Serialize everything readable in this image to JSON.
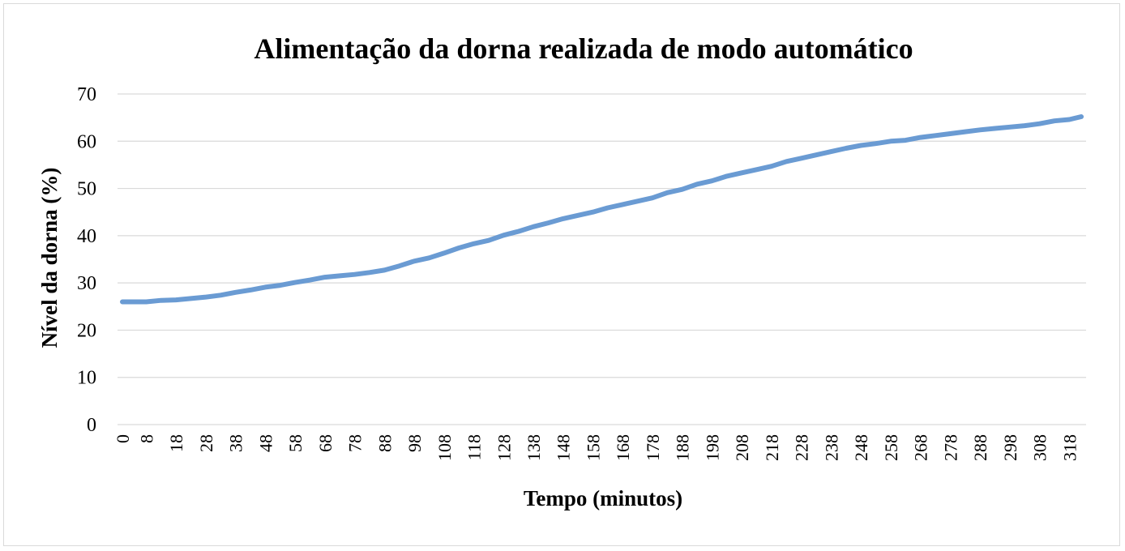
{
  "chart_data": {
    "type": "line",
    "title": "Alimentação da dorna realizada de modo automático",
    "xlabel": "Tempo (minutos)",
    "ylabel": "Nível da dorna (%)",
    "ylim": [
      0,
      70
    ],
    "yticks": [
      "0",
      "10",
      "20",
      "30",
      "40",
      "50",
      "60",
      "70"
    ],
    "xlim": [
      0,
      322
    ],
    "xticks": [
      "0",
      "8",
      "18",
      "28",
      "38",
      "48",
      "58",
      "68",
      "78",
      "88",
      "98",
      "108",
      "118",
      "128",
      "138",
      "148",
      "158",
      "168",
      "178",
      "188",
      "198",
      "208",
      "218",
      "228",
      "238",
      "248",
      "258",
      "268",
      "278",
      "288",
      "298",
      "308",
      "318"
    ],
    "grid": true,
    "legend": "none",
    "series": [
      {
        "color": "#6a9bd3",
        "x": [
          0,
          3,
          8,
          13,
          18,
          23,
          28,
          33,
          38,
          43,
          48,
          53,
          58,
          63,
          68,
          73,
          78,
          83,
          88,
          93,
          98,
          103,
          108,
          113,
          118,
          123,
          128,
          133,
          138,
          143,
          148,
          153,
          158,
          163,
          168,
          173,
          178,
          183,
          188,
          193,
          198,
          203,
          208,
          213,
          218,
          223,
          228,
          233,
          238,
          243,
          248,
          253,
          258,
          263,
          268,
          273,
          278,
          283,
          288,
          293,
          298,
          303,
          308,
          313,
          318,
          322
        ],
        "values": [
          26.0,
          26.0,
          26.0,
          26.3,
          26.4,
          26.7,
          27.0,
          27.4,
          28.0,
          28.5,
          29.1,
          29.5,
          30.1,
          30.6,
          31.2,
          31.5,
          31.8,
          32.2,
          32.7,
          33.6,
          34.6,
          35.3,
          36.3,
          37.4,
          38.3,
          39.0,
          40.1,
          40.9,
          41.9,
          42.7,
          43.6,
          44.3,
          45.0,
          45.9,
          46.6,
          47.3,
          48.0,
          49.1,
          49.8,
          50.9,
          51.6,
          52.6,
          53.3,
          54.0,
          54.7,
          55.7,
          56.4,
          57.1,
          57.8,
          58.5,
          59.1,
          59.5,
          60.0,
          60.2,
          60.8,
          61.2,
          61.6,
          62.0,
          62.4,
          62.7,
          63.0,
          63.3,
          63.7,
          64.3,
          64.6,
          65.2
        ]
      }
    ]
  }
}
